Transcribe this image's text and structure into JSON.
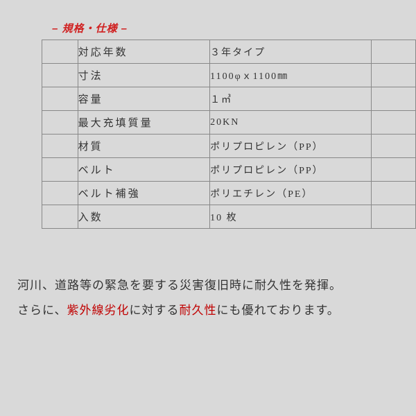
{
  "title_text": "– 規格・仕様 –",
  "title_color": "#d02020",
  "rows": [
    {
      "label": "対応年数",
      "value": "３年タイプ"
    },
    {
      "label": "寸法",
      "value": "1100φｘ1100㎜"
    },
    {
      "label": "容量",
      "value": "１㎥"
    },
    {
      "label": "最大充填質量",
      "value": "20KN"
    },
    {
      "label": "材質",
      "value": "ポリプロピレン（PP）"
    },
    {
      "label": "ベルト",
      "value": "ポリプロピレン（PP）"
    },
    {
      "label": "ベルト補強",
      "value": "ポリエチレン（PE）"
    },
    {
      "label": "入数",
      "value": "10 枚"
    }
  ],
  "desc": {
    "line1": "河川、道路等の緊急を要する災害復旧時に耐久性を発揮。",
    "line2_a": "さらに、",
    "line2_b": "紫外線劣化",
    "line2_c": "に対する",
    "line2_d": "耐久性",
    "line2_e": "にも優れております。"
  },
  "style": {
    "background_color": "#d9d9d9",
    "border_color": "#888888",
    "text_color": "#333333",
    "accent_color": "#c00000",
    "label_fontsize": 15,
    "value_fontsize": 14,
    "title_fontsize": 15,
    "desc_fontsize": 17
  }
}
